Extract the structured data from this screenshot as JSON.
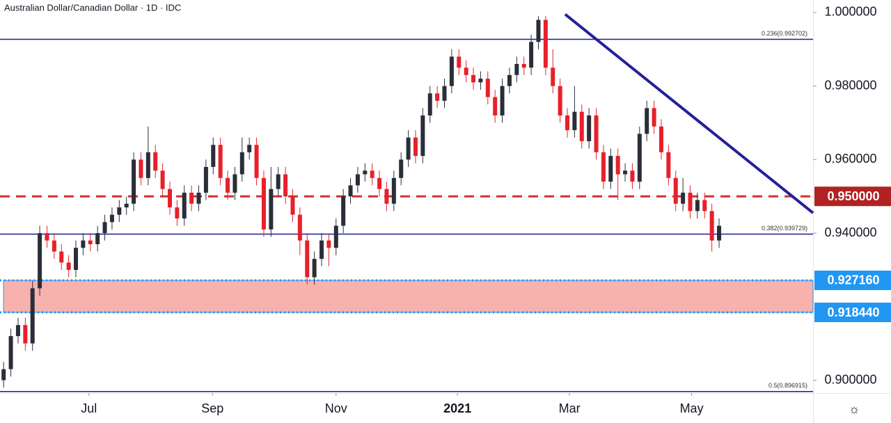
{
  "chart_data": {
    "type": "candlestick",
    "title": "Australian Dollar/Canadian Dollar · 1D · IDC",
    "xlim": [
      -0.5,
      112
    ],
    "ylim": [
      0.8965,
      1.0034
    ],
    "xticks": [
      {
        "value": 11.8,
        "label": "Jul"
      },
      {
        "value": 28.9,
        "label": "Sep"
      },
      {
        "value": 46.0,
        "label": "Nov"
      },
      {
        "value": 62.8,
        "label": "2021",
        "weight": "bold"
      },
      {
        "value": 78.3,
        "label": "Mar"
      },
      {
        "value": 95.2,
        "label": "May"
      }
    ],
    "yticks": [
      {
        "value": 1.0,
        "label": "1.000000"
      },
      {
        "value": 0.98,
        "label": "0.980000"
      },
      {
        "value": 0.96,
        "label": "0.960000"
      },
      {
        "value": 0.94,
        "label": "0.940000"
      },
      {
        "value": 0.9,
        "label": "0.900000"
      }
    ],
    "up_color": "#2a2e39",
    "down_color": "#e8202a",
    "open": [
      0.9,
      0.903,
      0.912,
      0.915,
      0.91,
      0.925,
      0.94,
      0.938,
      0.935,
      0.932,
      0.93,
      0.936,
      0.938,
      0.937,
      0.94,
      0.943,
      0.945,
      0.947,
      0.948,
      0.96,
      0.955,
      0.962,
      0.957,
      0.952,
      0.947,
      0.944,
      0.951,
      0.948,
      0.951,
      0.958,
      0.964,
      0.955,
      0.951,
      0.956,
      0.962,
      0.964,
      0.955,
      0.941,
      0.952,
      0.956,
      0.95,
      0.945,
      0.938,
      0.928,
      0.933,
      0.938,
      0.936,
      0.942,
      0.95,
      0.953,
      0.956,
      0.957,
      0.955,
      0.952,
      0.948,
      0.955,
      0.96,
      0.966,
      0.961,
      0.972,
      0.978,
      0.976,
      0.98,
      0.988,
      0.985,
      0.983,
      0.981,
      0.982,
      0.977,
      0.972,
      0.98,
      0.983,
      0.986,
      0.985,
      0.992,
      0.998,
      0.985,
      0.98,
      0.972,
      0.968,
      0.973,
      0.965,
      0.972,
      0.962,
      0.954,
      0.961,
      0.956,
      0.957,
      0.954,
      0.967,
      0.974,
      0.969,
      0.962,
      0.955,
      0.948,
      0.951,
      0.946,
      0.949,
      0.946,
      0.938
    ],
    "high": [
      0.905,
      0.914,
      0.917,
      0.917,
      0.927,
      0.942,
      0.942,
      0.94,
      0.937,
      0.934,
      0.938,
      0.94,
      0.94,
      0.942,
      0.945,
      0.947,
      0.949,
      0.95,
      0.962,
      0.962,
      0.969,
      0.964,
      0.959,
      0.954,
      0.949,
      0.953,
      0.953,
      0.953,
      0.96,
      0.966,
      0.966,
      0.957,
      0.958,
      0.966,
      0.966,
      0.966,
      0.957,
      0.958,
      0.958,
      0.958,
      0.952,
      0.947,
      0.94,
      0.935,
      0.94,
      0.94,
      0.944,
      0.952,
      0.955,
      0.958,
      0.959,
      0.959,
      0.957,
      0.954,
      0.957,
      0.962,
      0.968,
      0.968,
      0.974,
      0.98,
      0.98,
      0.982,
      0.99,
      0.99,
      0.987,
      0.985,
      0.984,
      0.984,
      0.979,
      0.982,
      0.985,
      0.988,
      0.988,
      0.994,
      0.999,
      0.999,
      0.99,
      0.982,
      0.974,
      0.98,
      0.975,
      0.974,
      0.974,
      0.964,
      0.963,
      0.963,
      0.959,
      0.959,
      0.969,
      0.976,
      0.976,
      0.971,
      0.964,
      0.957,
      0.955,
      0.953,
      0.951,
      0.951,
      0.948,
      0.944
    ],
    "low": [
      0.898,
      0.901,
      0.91,
      0.908,
      0.908,
      0.923,
      0.936,
      0.933,
      0.93,
      0.928,
      0.928,
      0.934,
      0.935,
      0.935,
      0.938,
      0.941,
      0.943,
      0.945,
      0.946,
      0.953,
      0.953,
      0.955,
      0.95,
      0.945,
      0.942,
      0.942,
      0.946,
      0.946,
      0.949,
      0.956,
      0.953,
      0.949,
      0.949,
      0.954,
      0.96,
      0.953,
      0.939,
      0.939,
      0.95,
      0.948,
      0.943,
      0.934,
      0.926,
      0.926,
      0.931,
      0.931,
      0.934,
      0.94,
      0.948,
      0.951,
      0.954,
      0.953,
      0.95,
      0.946,
      0.946,
      0.953,
      0.958,
      0.959,
      0.959,
      0.97,
      0.974,
      0.974,
      0.978,
      0.983,
      0.981,
      0.979,
      0.979,
      0.975,
      0.97,
      0.97,
      0.978,
      0.981,
      0.983,
      0.983,
      0.99,
      0.983,
      0.978,
      0.97,
      0.966,
      0.966,
      0.963,
      0.963,
      0.96,
      0.952,
      0.952,
      0.949,
      0.954,
      0.952,
      0.952,
      0.965,
      0.967,
      0.96,
      0.953,
      0.946,
      0.946,
      0.944,
      0.944,
      0.944,
      0.935,
      0.936
    ],
    "close": [
      0.903,
      0.912,
      0.915,
      0.91,
      0.925,
      0.94,
      0.938,
      0.935,
      0.932,
      0.93,
      0.936,
      0.938,
      0.937,
      0.94,
      0.943,
      0.945,
      0.947,
      0.948,
      0.96,
      0.955,
      0.962,
      0.957,
      0.952,
      0.947,
      0.944,
      0.951,
      0.948,
      0.951,
      0.958,
      0.964,
      0.955,
      0.951,
      0.956,
      0.962,
      0.964,
      0.955,
      0.941,
      0.952,
      0.956,
      0.95,
      0.945,
      0.938,
      0.928,
      0.933,
      0.938,
      0.936,
      0.942,
      0.95,
      0.953,
      0.956,
      0.957,
      0.955,
      0.952,
      0.948,
      0.955,
      0.96,
      0.966,
      0.961,
      0.972,
      0.978,
      0.976,
      0.98,
      0.988,
      0.985,
      0.983,
      0.981,
      0.982,
      0.977,
      0.972,
      0.98,
      0.983,
      0.986,
      0.985,
      0.992,
      0.998,
      0.985,
      0.98,
      0.972,
      0.968,
      0.973,
      0.965,
      0.972,
      0.962,
      0.954,
      0.961,
      0.956,
      0.957,
      0.954,
      0.967,
      0.974,
      0.969,
      0.962,
      0.955,
      0.948,
      0.951,
      0.946,
      0.949,
      0.946,
      0.938,
      0.942
    ],
    "fib_levels": [
      {
        "label": "0.236(0.992702)",
        "value": 0.992702
      },
      {
        "label": "0.382(0.939729)",
        "value": 0.939729
      },
      {
        "label": "0.5(0.896915)",
        "value": 0.896915
      }
    ],
    "fib_color": "#1f1c8a",
    "resistance": {
      "value": 0.95,
      "label": "0.950000",
      "color": "#d32f2f"
    },
    "zone": {
      "low": {
        "value": 0.91844,
        "label": "0.918440"
      },
      "high": {
        "value": 0.92716,
        "label": "0.927160"
      },
      "color": "#2196f3",
      "fill": "#f7b2ae"
    },
    "trendline": {
      "x": [
        77.7,
        112
      ],
      "y": [
        0.9995,
        0.9455
      ],
      "color": "#24209b"
    }
  }
}
